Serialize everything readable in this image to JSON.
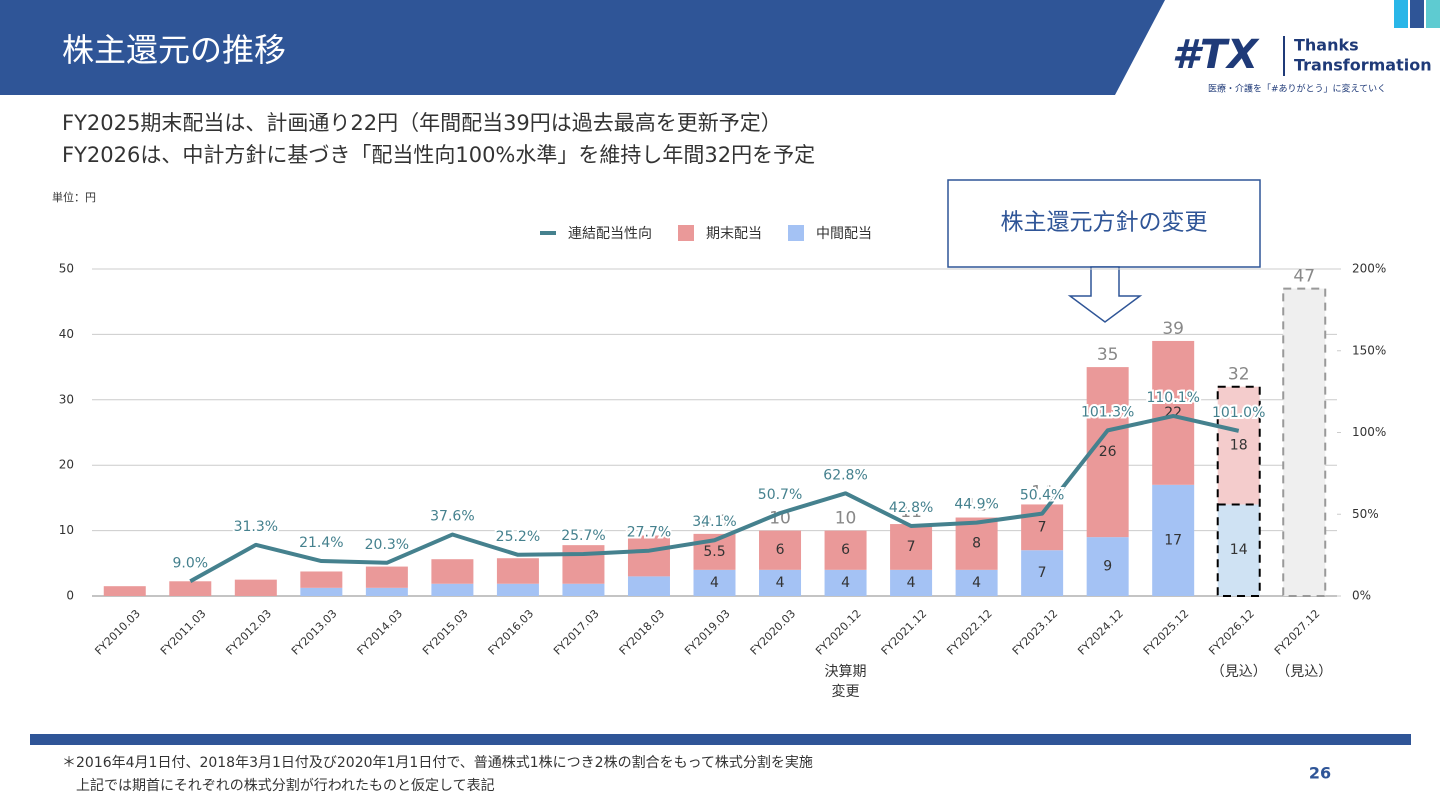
{
  "header": {
    "title": "株主還元の推移",
    "logo_mark": "#TX",
    "logo_line1": "Thanks",
    "logo_line2": "Transformation",
    "logo_tagline": "医療・介護を「#ありがとう」に変えていく"
  },
  "subtitle": [
    "FY2025期末配当は、計画通り22円（年間配当39円は過去最高を更新予定）",
    "FY2026は、中計方針に基づき「配当性向100%水準」を維持し年間32円を予定"
  ],
  "callout": "株主還元方針の変更",
  "footnote": [
    "＊2016年4月1日付、2018年3月1日付及び2020年1月1日付で、普通株式1株につき2株の割合をもって株式分割を実施",
    "上記では期首にそれぞれの株式分割が行われたものと仮定して表記"
  ],
  "page_number": "26",
  "chart_data": {
    "type": "bar",
    "unit_label": "単位：円",
    "categories": [
      "FY2010.03",
      "FY2011.03",
      "FY2012.03",
      "FY2013.03",
      "FY2014.03",
      "FY2015.03",
      "FY2016.03",
      "FY2017.03",
      "FY2018.03",
      "FY2019.03",
      "FY2020.03",
      "FY2020.12",
      "FY2021.12",
      "FY2022.12",
      "FY2023.12",
      "FY2024.12",
      "FY2025.12",
      "FY2026.12",
      "FY2027.12"
    ],
    "category_notes": [
      null,
      null,
      null,
      null,
      null,
      null,
      null,
      null,
      null,
      null,
      null,
      "決算期\n変更",
      null,
      null,
      null,
      null,
      null,
      "（見込）",
      "（見込）"
    ],
    "dashed": [
      false,
      false,
      false,
      false,
      false,
      false,
      false,
      false,
      false,
      false,
      false,
      false,
      false,
      false,
      false,
      false,
      false,
      true,
      true
    ],
    "series": [
      {
        "name": "中間配当",
        "color": "#a4c2f4",
        "colors": [
          "#a4c2f4",
          "#a4c2f4",
          "#a4c2f4",
          "#a4c2f4",
          "#a4c2f4",
          "#a4c2f4",
          "#a4c2f4",
          "#a4c2f4",
          "#a4c2f4",
          "#a4c2f4",
          "#a4c2f4",
          "#a4c2f4",
          "#a4c2f4",
          "#a4c2f4",
          "#a4c2f4",
          "#a4c2f4",
          "#a4c2f4",
          "#cfe2f3",
          null
        ],
        "values": [
          0,
          0,
          0,
          1.25,
          1.25,
          1.875,
          1.875,
          1.875,
          3,
          4,
          4,
          4,
          4,
          4,
          7,
          9,
          17,
          14,
          null
        ]
      },
      {
        "name": "期末配当",
        "color": "#ea9999",
        "colors": [
          "#ea9999",
          "#ea9999",
          "#ea9999",
          "#ea9999",
          "#ea9999",
          "#ea9999",
          "#ea9999",
          "#ea9999",
          "#ea9999",
          "#ea9999",
          "#ea9999",
          "#ea9999",
          "#ea9999",
          "#ea9999",
          "#ea9999",
          "#ea9999",
          "#ea9999",
          "#f4cccc",
          null
        ],
        "values": [
          1.5,
          2.25,
          2.5,
          2.5,
          3.25,
          3.75,
          3.9,
          5.9,
          6.25,
          5.5,
          6,
          6,
          7,
          8,
          7,
          26,
          22,
          18,
          null
        ]
      },
      {
        "name": "連結配当性向",
        "type": "line",
        "axis": "y2",
        "color": "#45818e",
        "values": [
          null,
          9.0,
          31.3,
          21.4,
          20.3,
          37.6,
          25.2,
          25.7,
          27.7,
          34.1,
          50.7,
          62.8,
          42.8,
          44.9,
          50.4,
          101.3,
          110.1,
          101.0,
          null
        ],
        "value_labels": [
          null,
          "9.0%",
          "31.3%",
          "21.4%",
          "20.3%",
          "37.6%",
          "25.2%",
          "25.7%",
          "27.7%",
          "34.1%",
          "50.7%",
          "62.8%",
          "42.8%",
          "44.9%",
          "50.4%",
          "101.3%",
          "110.1%",
          "101.0%",
          null
        ]
      }
    ],
    "totals": [
      null,
      null,
      null,
      null,
      null,
      null,
      null,
      null,
      null,
      9.5,
      10,
      10,
      11,
      12,
      14,
      35,
      39,
      32,
      47
    ],
    "total_color": "#efefef",
    "ylim": [
      0,
      50
    ],
    "yticks": [
      0,
      10,
      20,
      30,
      40,
      50
    ],
    "y2lim": [
      0,
      200
    ],
    "y2ticks": [
      {
        "value": 0,
        "label": "0%"
      },
      {
        "value": 50,
        "label": "50%"
      },
      {
        "value": 100,
        "label": "100%"
      },
      {
        "value": 150,
        "label": "150%"
      },
      {
        "value": 200,
        "label": "200%"
      }
    ],
    "grid": true,
    "legend": "top"
  }
}
